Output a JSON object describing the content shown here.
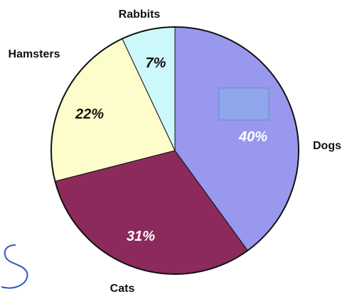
{
  "chart_data": {
    "type": "pie",
    "slices": [
      {
        "label": "Dogs",
        "value": 40,
        "value_label": "40%",
        "color": "#9898ee",
        "value_label_color": "#ffffff"
      },
      {
        "label": "Cats",
        "value": 31,
        "value_label": "31%",
        "color": "#8c2a5c",
        "value_label_color": "#ffffff"
      },
      {
        "label": "Hamsters",
        "value": 22,
        "value_label": "22%",
        "color": "#fdfdcc",
        "value_label_color": "#111111"
      },
      {
        "label": "Rabbits",
        "value": 7,
        "value_label": "7%",
        "color": "#ccf8fc",
        "value_label_color": "#111111"
      }
    ],
    "start": "12 o'clock",
    "direction": "clockwise",
    "border_color": "#111111",
    "overlay_box_color": "#8fa6ec",
    "overlay_stroke_color": "#2f55c8"
  }
}
